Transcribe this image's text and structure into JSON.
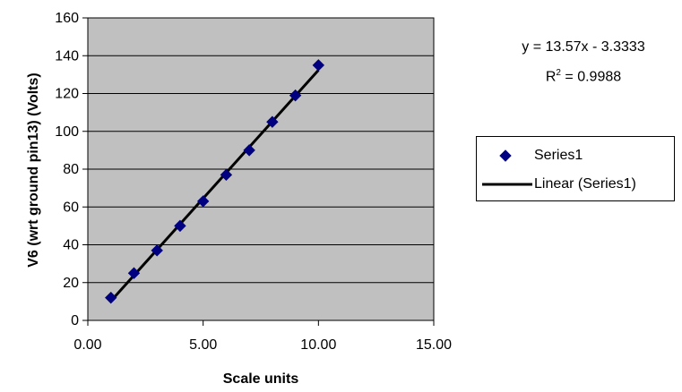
{
  "chart_data": {
    "type": "scatter",
    "xlabel": "Scale units",
    "ylabel": "V6 (wrt ground pin13) (Volts)",
    "xlim": [
      0,
      15
    ],
    "ylim": [
      0,
      160
    ],
    "xticks": [
      "0.00",
      "5.00",
      "10.00",
      "15.00"
    ],
    "yticks": [
      "0",
      "20",
      "40",
      "60",
      "80",
      "100",
      "120",
      "140",
      "160"
    ],
    "grid": true,
    "legend_position": "right",
    "series": [
      {
        "name": "Series1",
        "marker": "diamond",
        "color": "#000080",
        "x": [
          1,
          2,
          3,
          4,
          5,
          6,
          7,
          8,
          9,
          10
        ],
        "y": [
          12,
          25,
          37,
          50,
          63,
          77,
          90,
          105,
          119,
          135
        ]
      }
    ],
    "trendline": {
      "name": "Linear (Series1)",
      "type": "linear",
      "slope": 13.57,
      "intercept": -3.3333,
      "x_range": [
        1,
        10
      ],
      "color": "#000000",
      "equation": "y = 13.57x - 3.3333",
      "r2_prefix": "R",
      "r2_sup": "2",
      "r2_suffix": " = 0.9988"
    },
    "colors": {
      "plot_background": "#c0c0c0",
      "gridline": "#000000"
    }
  }
}
